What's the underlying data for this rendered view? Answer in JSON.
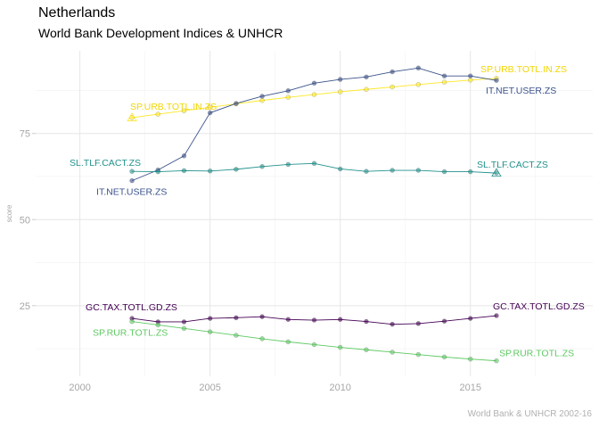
{
  "header": {
    "title": "Netherlands",
    "subtitle": "World Bank Development Indices & UNHCR"
  },
  "caption": "World Bank & UNHCR 2002-16",
  "chart_data": {
    "type": "line",
    "title": "Netherlands",
    "subtitle": "World Bank Development Indices & UNHCR",
    "xlabel": "",
    "ylabel": "score",
    "xlim": [
      1998.3,
      2019.7
    ],
    "ylim": [
      4.5,
      99
    ],
    "x_ticks": [
      2000,
      2005,
      2010,
      2015
    ],
    "y_ticks": [
      25,
      50,
      75
    ],
    "grid": true,
    "legend": "none",
    "x": [
      2002,
      2003,
      2004,
      2005,
      2006,
      2007,
      2008,
      2009,
      2010,
      2011,
      2012,
      2013,
      2014,
      2015,
      2016
    ],
    "series": [
      {
        "name": "SP.URB.TOTL.IN.ZS",
        "color": "#fde725",
        "values": [
          79.6,
          80.6,
          81.6,
          82.6,
          83.6,
          84.6,
          85.5,
          86.3,
          87.1,
          87.8,
          88.5,
          89.2,
          89.9,
          90.5,
          91.0
        ],
        "start_label": "SP.URB.TOTL.IN.ZS",
        "end_label": "SP.URB.TOTL.IN.ZS"
      },
      {
        "name": "IT.NET.USER.ZS",
        "color": "#3b528b",
        "values": [
          61.3,
          64.4,
          68.5,
          81.0,
          83.7,
          85.8,
          87.4,
          89.6,
          90.7,
          91.4,
          92.9,
          94.0,
          91.7,
          91.7,
          90.4
        ],
        "start_label": "IT.NET.USER.ZS",
        "end_label": "IT.NET.USER.ZS"
      },
      {
        "name": "SL.TLF.CACT.ZS",
        "color": "#21918c",
        "values": [
          64.0,
          63.9,
          64.2,
          64.1,
          64.6,
          65.4,
          66.0,
          66.3,
          64.7,
          64.0,
          64.3,
          64.3,
          63.9,
          63.9,
          63.5
        ],
        "start_label": "SL.TLF.CACT.ZS",
        "end_label": "SL.TLF.CACT.ZS"
      },
      {
        "name": "GC.TAX.TOTL.GD.ZS",
        "color": "#440154",
        "values": [
          21.3,
          20.3,
          20.3,
          21.3,
          21.5,
          21.8,
          21.0,
          20.8,
          21.0,
          20.4,
          19.6,
          19.8,
          20.5,
          21.3,
          22.1
        ],
        "start_label": "GC.TAX.TOTL.GD.ZS",
        "end_label": "GC.TAX.TOTL.GD.ZS"
      },
      {
        "name": "SP.RUR.TOTL.ZS",
        "color": "#5ec962",
        "values": [
          20.4,
          19.4,
          18.4,
          17.4,
          16.4,
          15.4,
          14.5,
          13.7,
          12.9,
          12.2,
          11.5,
          10.8,
          10.1,
          9.5,
          9.0
        ],
        "start_label": "SP.RUR.TOTL.ZS",
        "end_label": "SP.RUR.TOTL.ZS"
      }
    ]
  }
}
